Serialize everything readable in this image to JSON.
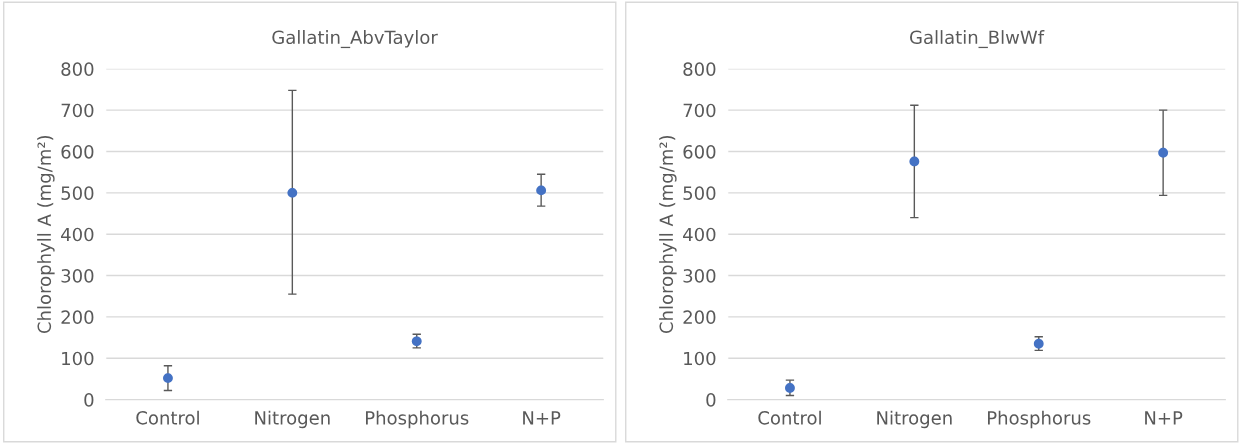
{
  "chart_data": [
    {
      "type": "scatter",
      "title": "Gallatin_AbvTaylor",
      "ylabel": "Chlorophyll A (mg/m²)",
      "categories": [
        "Control",
        "Nitrogen",
        "Phosphorus",
        "N+P"
      ],
      "series": [
        {
          "color": "#4472c4",
          "values": [
            52,
            500,
            141,
            506
          ],
          "errors": [
            [
              22,
              82
            ],
            [
              255,
              748
            ],
            [
              125,
              158
            ],
            [
              468,
              545
            ]
          ]
        }
      ],
      "ylim": [
        0,
        800
      ],
      "yticks": [
        0,
        100,
        200,
        300,
        400,
        500,
        600,
        700,
        800
      ],
      "grid": "y",
      "marker": "circle",
      "legend": false
    },
    {
      "type": "scatter",
      "title": "Gallatin_BlwWf",
      "ylabel": "Chlorophyll A (mg/m²)",
      "categories": [
        "Control",
        "Nitrogen",
        "Phosphorus",
        "N+P"
      ],
      "series": [
        {
          "color": "#4472c4",
          "values": [
            28,
            576,
            135,
            597
          ],
          "errors": [
            [
              10,
              47
            ],
            [
              440,
              712
            ],
            [
              119,
              152
            ],
            [
              494,
              700
            ]
          ]
        }
      ],
      "ylim": [
        0,
        800
      ],
      "yticks": [
        0,
        100,
        200,
        300,
        400,
        500,
        600,
        700,
        800
      ],
      "grid": "y",
      "marker": "circle",
      "legend": false
    }
  ]
}
